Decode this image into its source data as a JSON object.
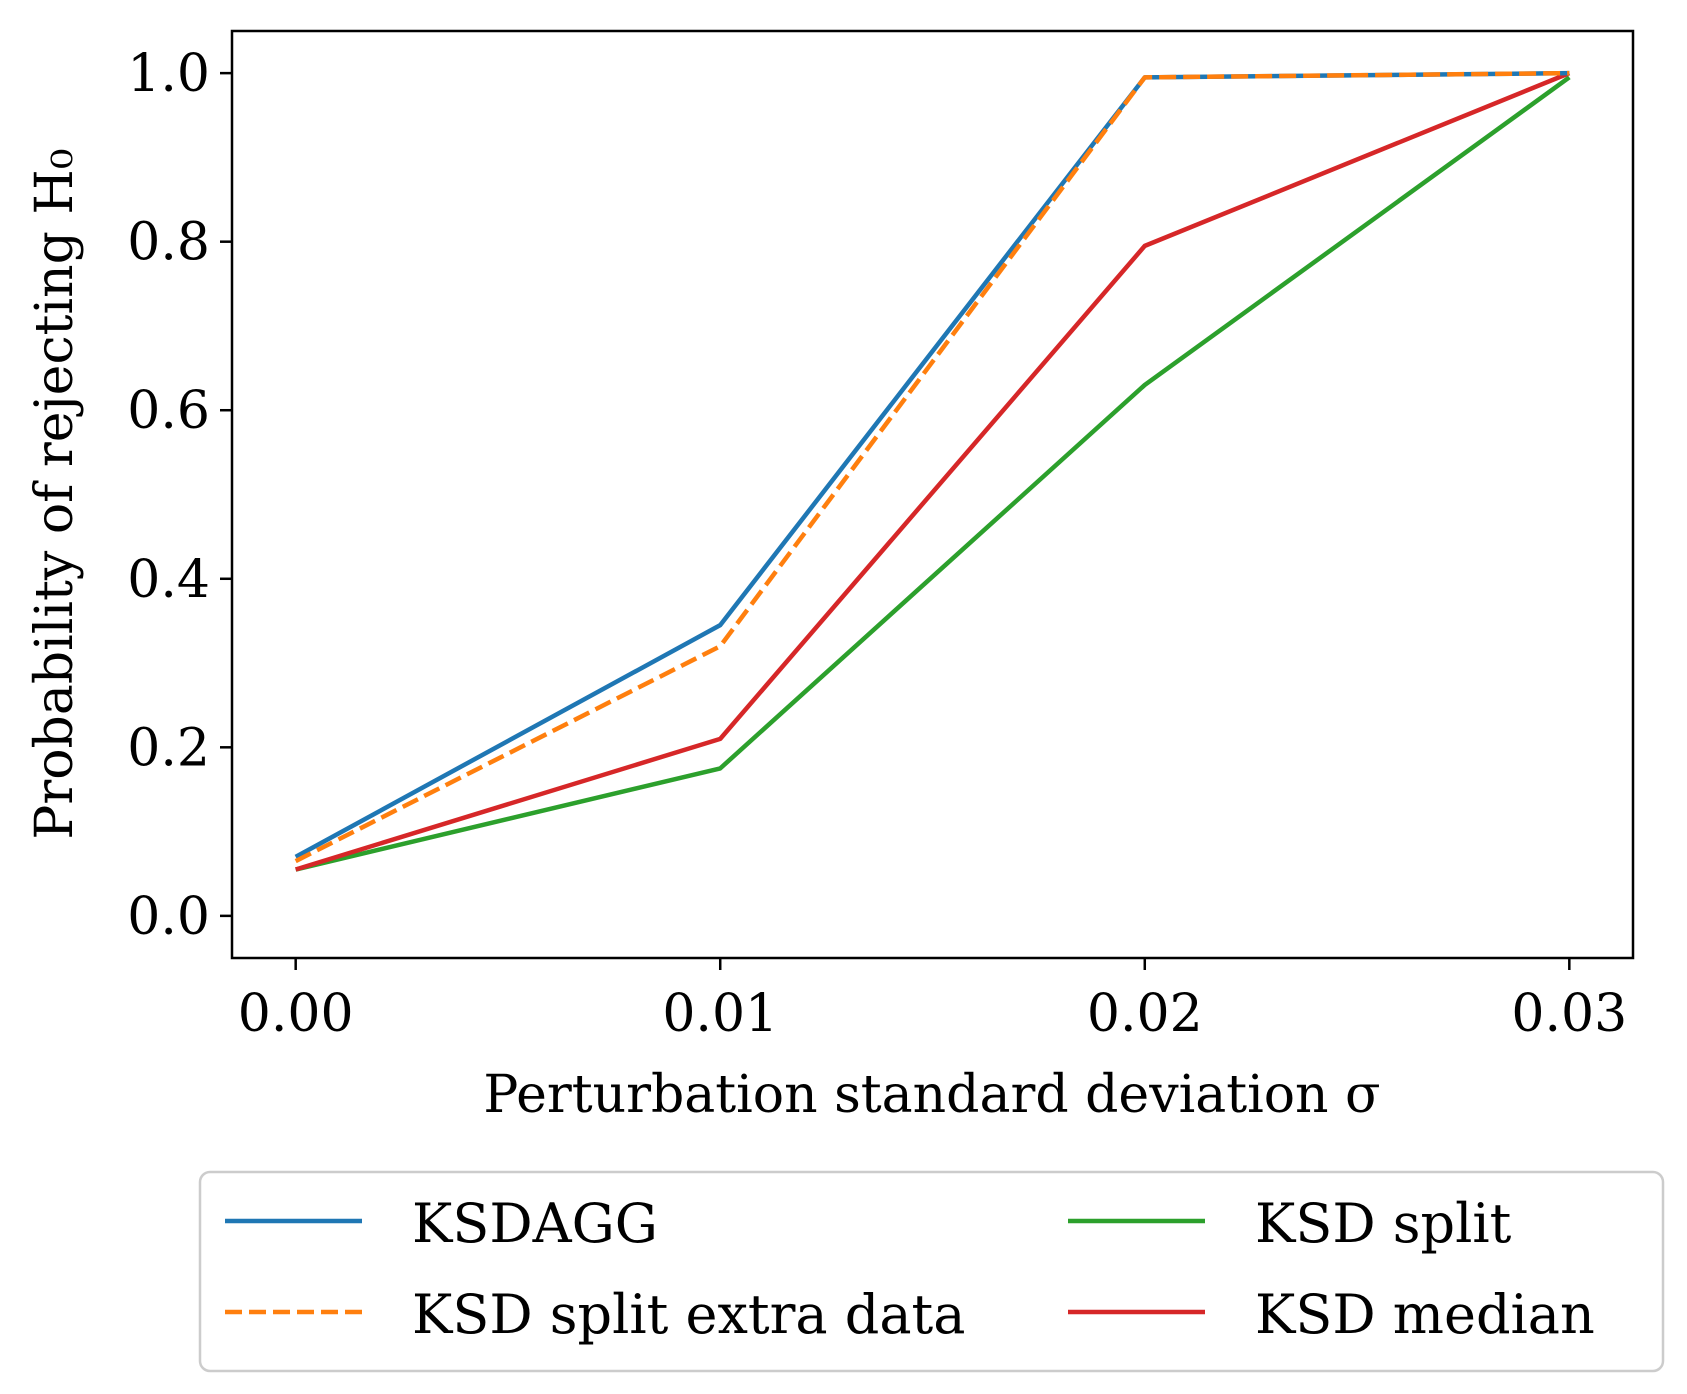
{
  "chart_data": {
    "type": "line",
    "xlabel": "Perturbation standard deviation σ",
    "ylabel": "Probability of rejecting H₀",
    "x": [
      0.0,
      0.01,
      0.02,
      0.03
    ],
    "x_tick_labels": [
      "0.00",
      "0.01",
      "0.02",
      "0.03"
    ],
    "y_tick_values": [
      0.0,
      0.2,
      0.4,
      0.6,
      0.8,
      1.0
    ],
    "y_tick_labels": [
      "0.0",
      "0.2",
      "0.4",
      "0.6",
      "0.8",
      "1.0"
    ],
    "xlim": [
      -0.0015,
      0.0315
    ],
    "ylim": [
      -0.05,
      1.05
    ],
    "grid": false,
    "legend_position": "bottom-outside",
    "series": [
      {
        "name": "KSDAGG",
        "values": [
          0.07,
          0.345,
          0.995,
          1.0
        ],
        "color": "#1f77b4",
        "dash": "solid"
      },
      {
        "name": "KSD split extra data",
        "values": [
          0.065,
          0.32,
          0.995,
          1.0
        ],
        "color": "#ff7f0e",
        "dash": "dashed"
      },
      {
        "name": "KSD split",
        "values": [
          0.055,
          0.175,
          0.63,
          0.995
        ],
        "color": "#2ca02c",
        "dash": "solid"
      },
      {
        "name": "KSD median",
        "values": [
          0.055,
          0.21,
          0.795,
          1.0
        ],
        "color": "#d62728",
        "dash": "solid"
      }
    ]
  }
}
